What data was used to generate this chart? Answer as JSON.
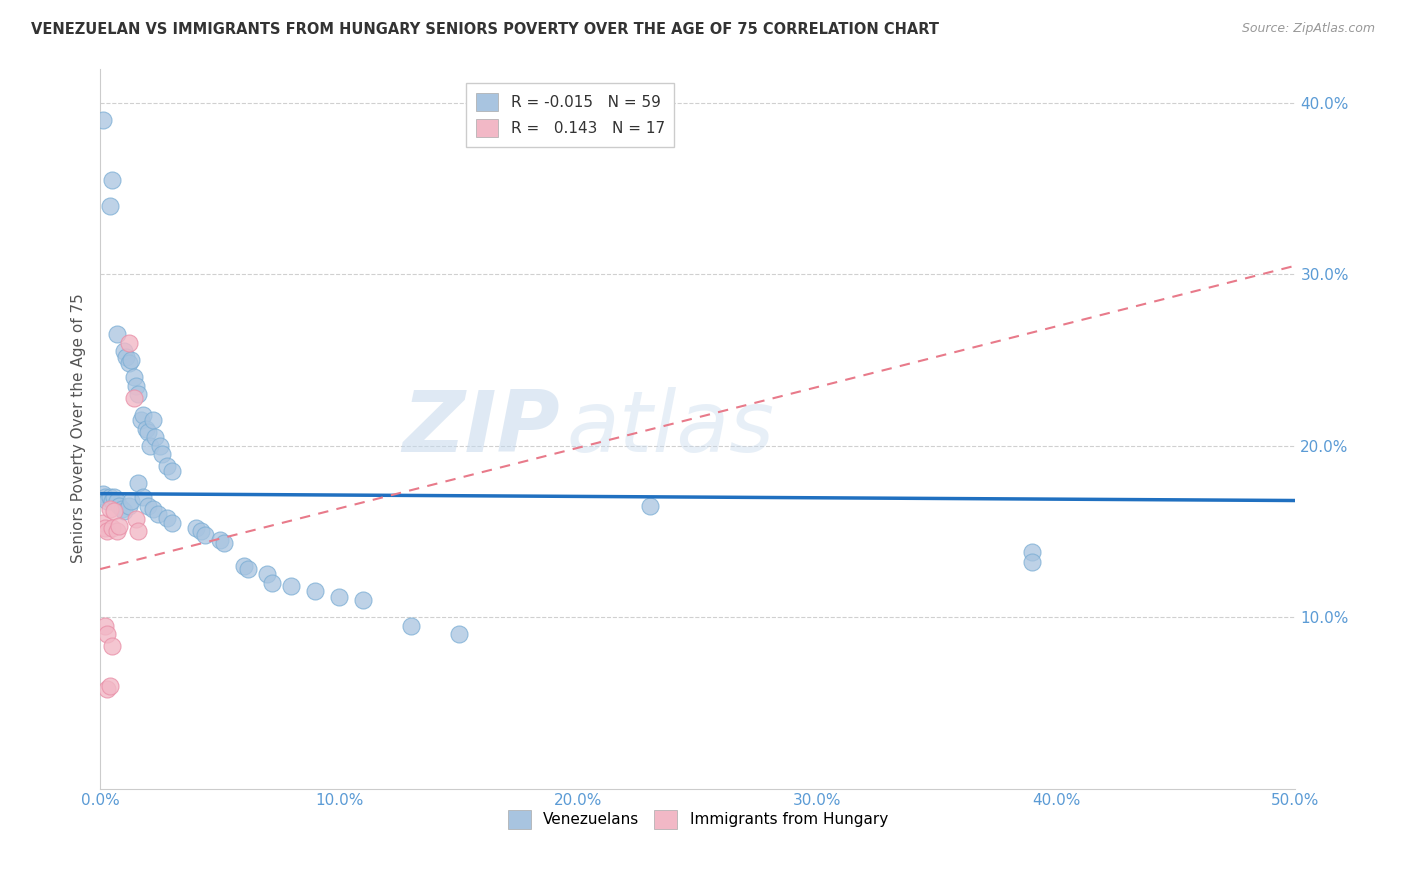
{
  "title": "VENEZUELAN VS IMMIGRANTS FROM HUNGARY SENIORS POVERTY OVER THE AGE OF 75 CORRELATION CHART",
  "source": "Source: ZipAtlas.com",
  "ylabel": "Seniors Poverty Over the Age of 75",
  "xlim": [
    0,
    0.5
  ],
  "ylim": [
    0,
    0.42
  ],
  "xticks": [
    0.0,
    0.1,
    0.2,
    0.3,
    0.4,
    0.5
  ],
  "xticklabels": [
    "0.0%",
    "10.0%",
    "20.0%",
    "30.0%",
    "40.0%",
    "50.0%"
  ],
  "yticks": [
    0.1,
    0.2,
    0.3,
    0.4
  ],
  "yticklabels": [
    "10.0%",
    "20.0%",
    "30.0%",
    "40.0%"
  ],
  "legend_label1": "R = -0.015   N = 59",
  "legend_label2": "R =   0.143   N = 17",
  "watermark_zip": "ZIP",
  "watermark_atlas": "atlas",
  "venezuelan_color": "#a8c4e0",
  "venezuela_edge": "#7aadd4",
  "hungary_color": "#f2b8c6",
  "hungary_edge": "#e990a8",
  "trend_line_blue": "#2070c0",
  "trend_line_pink": "#e87a8a",
  "venezuelan_points": [
    [
      0.001,
      0.39
    ],
    [
      0.004,
      0.34
    ],
    [
      0.005,
      0.355
    ],
    [
      0.007,
      0.265
    ],
    [
      0.01,
      0.255
    ],
    [
      0.011,
      0.252
    ],
    [
      0.012,
      0.248
    ],
    [
      0.013,
      0.25
    ],
    [
      0.014,
      0.24
    ],
    [
      0.015,
      0.235
    ],
    [
      0.016,
      0.23
    ],
    [
      0.017,
      0.215
    ],
    [
      0.018,
      0.218
    ],
    [
      0.019,
      0.21
    ],
    [
      0.02,
      0.208
    ],
    [
      0.021,
      0.2
    ],
    [
      0.022,
      0.215
    ],
    [
      0.023,
      0.205
    ],
    [
      0.025,
      0.2
    ],
    [
      0.026,
      0.195
    ],
    [
      0.028,
      0.188
    ],
    [
      0.03,
      0.185
    ],
    [
      0.001,
      0.172
    ],
    [
      0.002,
      0.17
    ],
    [
      0.003,
      0.168
    ],
    [
      0.004,
      0.17
    ],
    [
      0.005,
      0.168
    ],
    [
      0.006,
      0.17
    ],
    [
      0.007,
      0.168
    ],
    [
      0.008,
      0.165
    ],
    [
      0.009,
      0.163
    ],
    [
      0.01,
      0.162
    ],
    [
      0.012,
      0.165
    ],
    [
      0.013,
      0.168
    ],
    [
      0.016,
      0.178
    ],
    [
      0.018,
      0.17
    ],
    [
      0.02,
      0.165
    ],
    [
      0.022,
      0.163
    ],
    [
      0.024,
      0.16
    ],
    [
      0.028,
      0.158
    ],
    [
      0.03,
      0.155
    ],
    [
      0.04,
      0.152
    ],
    [
      0.042,
      0.15
    ],
    [
      0.044,
      0.148
    ],
    [
      0.05,
      0.145
    ],
    [
      0.052,
      0.143
    ],
    [
      0.06,
      0.13
    ],
    [
      0.062,
      0.128
    ],
    [
      0.07,
      0.125
    ],
    [
      0.072,
      0.12
    ],
    [
      0.08,
      0.118
    ],
    [
      0.09,
      0.115
    ],
    [
      0.1,
      0.112
    ],
    [
      0.11,
      0.11
    ],
    [
      0.13,
      0.095
    ],
    [
      0.15,
      0.09
    ],
    [
      0.23,
      0.165
    ],
    [
      0.39,
      0.138
    ],
    [
      0.39,
      0.132
    ]
  ],
  "hungary_points": [
    [
      0.001,
      0.155
    ],
    [
      0.002,
      0.152
    ],
    [
      0.003,
      0.15
    ],
    [
      0.004,
      0.163
    ],
    [
      0.005,
      0.152
    ],
    [
      0.006,
      0.162
    ],
    [
      0.007,
      0.15
    ],
    [
      0.008,
      0.153
    ],
    [
      0.002,
      0.095
    ],
    [
      0.003,
      0.09
    ],
    [
      0.005,
      0.083
    ],
    [
      0.012,
      0.26
    ],
    [
      0.014,
      0.228
    ],
    [
      0.015,
      0.157
    ],
    [
      0.016,
      0.15
    ],
    [
      0.003,
      0.058
    ],
    [
      0.004,
      0.06
    ]
  ],
  "ven_trend_x": [
    0.0,
    0.5
  ],
  "ven_trend_y": [
    0.172,
    0.168
  ],
  "hun_trend_x": [
    0.0,
    0.5
  ],
  "hun_trend_y": [
    0.128,
    0.305
  ],
  "background_color": "#ffffff",
  "grid_color": "#d0d0d0",
  "tick_color": "#5b9bd5",
  "title_color": "#333333",
  "source_color": "#999999"
}
